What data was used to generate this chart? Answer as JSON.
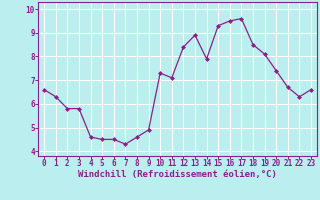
{
  "x": [
    0,
    1,
    2,
    3,
    4,
    5,
    6,
    7,
    8,
    9,
    10,
    11,
    12,
    13,
    14,
    15,
    16,
    17,
    18,
    19,
    20,
    21,
    22,
    23
  ],
  "y": [
    6.6,
    6.3,
    5.8,
    5.8,
    4.6,
    4.5,
    4.5,
    4.3,
    4.6,
    4.9,
    7.3,
    7.1,
    8.4,
    8.9,
    7.9,
    9.3,
    9.5,
    9.6,
    8.5,
    8.1,
    7.4,
    6.7,
    6.3,
    6.6
  ],
  "line_color": "#882288",
  "marker": "D",
  "marker_size": 2.0,
  "bg_color": "#bbeeee",
  "grid_color": "#ccdddd",
  "xlabel": "Windchill (Refroidissement éolien,°C)",
  "xlabel_fontsize": 6.5,
  "tick_fontsize": 5.5,
  "xlim": [
    -0.5,
    23.5
  ],
  "ylim": [
    3.8,
    10.3
  ],
  "yticks": [
    4,
    5,
    6,
    7,
    8,
    9,
    10
  ],
  "xticks": [
    0,
    1,
    2,
    3,
    4,
    5,
    6,
    7,
    8,
    9,
    10,
    11,
    12,
    13,
    14,
    15,
    16,
    17,
    18,
    19,
    20,
    21,
    22,
    23
  ]
}
